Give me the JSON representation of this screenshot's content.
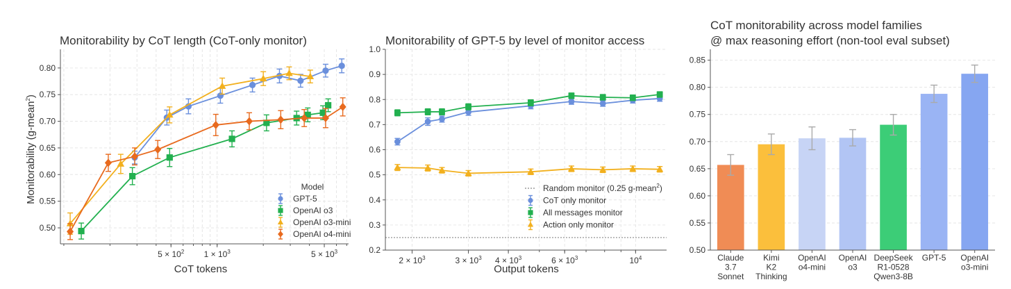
{
  "chart_data": [
    {
      "type": "line",
      "title": "Monitorability by CoT length (CoT-only monitor)",
      "xlabel": "CoT tokens",
      "ylabel": "Monitorability (g-mean",
      "ylabel_sup": "2",
      "ylabel_close": ")",
      "xscale": "log",
      "xlim": [
        95,
        7200
      ],
      "ylim": [
        0.47,
        0.835
      ],
      "yticks": [
        0.5,
        0.55,
        0.6,
        0.65,
        0.7,
        0.75,
        0.8
      ],
      "ytick_labels": [
        "0.50",
        "0.55",
        "0.60",
        "0.65",
        "0.70",
        "0.75",
        "0.80"
      ],
      "xticks": [
        {
          "value": 500,
          "base": "5 × 10",
          "exp": "2"
        },
        {
          "value": 1000,
          "base": "1 × 10",
          "exp": "3"
        },
        {
          "value": 5000,
          "base": "5 × 10",
          "exp": "3"
        }
      ],
      "legend_title": "Model",
      "legend_position": "bottom-right",
      "series": [
        {
          "name": "GPT-5",
          "color": "#6a8fdc",
          "marker": "circle",
          "x": [
            290,
            470,
            650,
            1050,
            1700,
            2550,
            3500,
            5100,
            6500
          ],
          "y": [
            0.632,
            0.707,
            0.728,
            0.748,
            0.768,
            0.785,
            0.776,
            0.795,
            0.804
          ],
          "err": [
            0.012,
            0.014,
            0.014,
            0.014,
            0.013,
            0.013,
            0.012,
            0.012,
            0.013
          ]
        },
        {
          "name": "OpenAI o3",
          "color": "#22b04f",
          "marker": "square",
          "x": [
            130,
            280,
            490,
            1250,
            2100,
            3300,
            3900,
            4900,
            5300
          ],
          "y": [
            0.494,
            0.597,
            0.632,
            0.667,
            0.697,
            0.706,
            0.712,
            0.716,
            0.73
          ],
          "err": [
            0.015,
            0.016,
            0.017,
            0.015,
            0.015,
            0.013,
            0.013,
            0.013,
            0.012
          ]
        },
        {
          "name": "OpenAI o3-mini",
          "color": "#f2b01e",
          "marker": "triangle",
          "x": [
            110,
            235,
            490,
            1080,
            2000,
            2950,
            4050
          ],
          "y": [
            0.508,
            0.62,
            0.712,
            0.766,
            0.78,
            0.79,
            0.784
          ],
          "err": [
            0.02,
            0.018,
            0.015,
            0.015,
            0.013,
            0.012,
            0.012
          ]
        },
        {
          "name": "OpenAI o4-mini",
          "color": "#e86a1e",
          "marker": "diamond",
          "x": [
            110,
            195,
            290,
            410,
            980,
            1620,
            2600,
            3700,
            5100,
            6600
          ],
          "y": [
            0.493,
            0.622,
            0.634,
            0.647,
            0.693,
            0.7,
            0.703,
            0.706,
            0.706,
            0.727
          ],
          "err": [
            0.015,
            0.016,
            0.016,
            0.017,
            0.02,
            0.016,
            0.017,
            0.016,
            0.018,
            0.017
          ]
        }
      ]
    },
    {
      "type": "line",
      "title": "Monitorability of GPT-5 by level of monitor access",
      "xlabel": "Output tokens",
      "xscale": "log",
      "xlim": [
        1650,
        12500
      ],
      "ylim": [
        0.2,
        1.0
      ],
      "yticks": [
        0.2,
        0.3,
        0.4,
        0.5,
        0.6,
        0.7,
        0.8,
        0.9,
        1.0
      ],
      "ytick_labels": [
        "0.2",
        "0.3",
        "0.4",
        "0.5",
        "0.6",
        "0.7",
        "0.8",
        "0.9",
        "1.0"
      ],
      "xticks": [
        {
          "value": 2000,
          "base": "2 × 10",
          "exp": "3"
        },
        {
          "value": 3000,
          "base": "3 × 10",
          "exp": "3"
        },
        {
          "value": 4000,
          "base": "4 × 10",
          "exp": "3"
        },
        {
          "value": 6000,
          "base": "6 × 10",
          "exp": "3"
        },
        {
          "value": 10000,
          "base": "10",
          "exp": "4"
        }
      ],
      "reference_line": {
        "name": "Random monitor (0.25 g-mean",
        "name_sup": "2",
        "name_close": ")",
        "y": 0.25,
        "color": "#888888"
      },
      "legend_position": "bottom-right",
      "series": [
        {
          "name": "CoT only monitor",
          "color": "#6a8fdc",
          "marker": "circle",
          "x": [
            1800,
            2240,
            2480,
            3000,
            4700,
            6300,
            7900,
            9800,
            11900
          ],
          "y": [
            0.632,
            0.712,
            0.722,
            0.75,
            0.775,
            0.792,
            0.784,
            0.797,
            0.804
          ],
          "err": [
            0.013,
            0.015,
            0.012,
            0.013,
            0.012,
            0.011,
            0.011,
            0.011,
            0.011
          ]
        },
        {
          "name": "All messages monitor",
          "color": "#22b04f",
          "marker": "square",
          "x": [
            1800,
            2240,
            2480,
            3000,
            4700,
            6300,
            7900,
            9800,
            11900
          ],
          "y": [
            0.747,
            0.751,
            0.751,
            0.771,
            0.787,
            0.815,
            0.809,
            0.807,
            0.82
          ],
          "err": [
            0.012,
            0.012,
            0.012,
            0.012,
            0.012,
            0.011,
            0.011,
            0.011,
            0.011
          ]
        },
        {
          "name": "Action only monitor",
          "color": "#f2b01e",
          "marker": "triangle",
          "x": [
            1800,
            2240,
            2480,
            3000,
            4700,
            6300,
            7900,
            9800,
            11900
          ],
          "y": [
            0.529,
            0.527,
            0.518,
            0.506,
            0.512,
            0.524,
            0.52,
            0.524,
            0.522
          ],
          "err": [
            0.012,
            0.012,
            0.011,
            0.011,
            0.011,
            0.011,
            0.011,
            0.011,
            0.011
          ]
        }
      ]
    },
    {
      "type": "bar",
      "title": "CoT monitorability across model families",
      "subtitle": "@ max reasoning effort (non-tool eval subset)",
      "ylim": [
        0.5,
        0.87
      ],
      "yticks": [
        0.5,
        0.55,
        0.6,
        0.65,
        0.7,
        0.75,
        0.8,
        0.85
      ],
      "ytick_labels": [
        "0.50",
        "0.55",
        "0.60",
        "0.65",
        "0.70",
        "0.75",
        "0.80",
        "0.85"
      ],
      "categories": [
        [
          "Claude",
          "3.7",
          "Sonnet"
        ],
        [
          "Kimi",
          "K2",
          "Thinking"
        ],
        [
          "OpenAI",
          "o4-mini"
        ],
        [
          "OpenAI",
          "o3"
        ],
        [
          "DeepSeek",
          "R1-0528",
          "Qwen3-8B"
        ],
        [
          "GPT-5"
        ],
        [
          "OpenAI",
          "o3-mini"
        ]
      ],
      "values": [
        0.657,
        0.695,
        0.706,
        0.707,
        0.731,
        0.788,
        0.825
      ],
      "err": [
        0.019,
        0.019,
        0.021,
        0.015,
        0.019,
        0.016,
        0.016
      ],
      "colors": [
        "#f08c55",
        "#fbbf3c",
        "#c7d4f5",
        "#b2c5f4",
        "#3ccd77",
        "#9ab4f4",
        "#86a6f1"
      ]
    }
  ]
}
